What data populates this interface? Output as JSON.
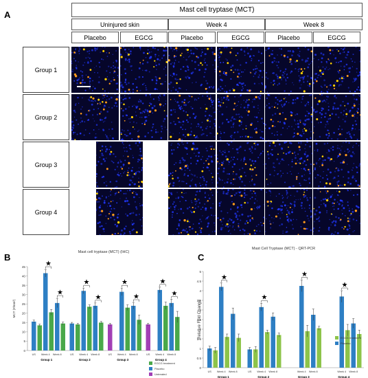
{
  "panels": {
    "a": "A",
    "b": "B",
    "c": "C"
  },
  "panelA": {
    "title": "Mast cell tryptase (MCT)",
    "timepoints": [
      "Uninjured skin",
      "Week 4",
      "Week 8"
    ],
    "treatments": [
      "Placebo",
      "EGCG",
      "Placebo",
      "EGCG",
      "Placebo",
      "EGCG"
    ],
    "groups": [
      "Group 1",
      "Group 2",
      "Group 3",
      "Group 4"
    ]
  },
  "panelB": {
    "title": "Mast cell tryptase (MCT) (IHC)",
    "ylabel": "MCT (#/mm²)",
    "legend": [
      "EGCG treatment",
      "Placebo",
      "Untreated"
    ],
    "colors": {
      "egcg": "#4aa84a",
      "placebo": "#2e7fc4",
      "untreated": "#a23fb5"
    }
  },
  "panelC": {
    "title": "Mast Cell Tryptase (MCT) - QRT-PCR",
    "ylabel": "Relative Fold Change",
    "legend": [
      "EGCG treatment",
      "Placebo"
    ],
    "colors": {
      "egcg": "#8dc44a",
      "placebo": "#2e7fc4"
    }
  },
  "chart_data": [
    {
      "type": "bar",
      "title": "Mast cell tryptase (MCT) (IHC)",
      "ylabel": "MCT (#/mm²)",
      "ylim": [
        0,
        45
      ],
      "yticks": [
        0,
        5,
        10,
        15,
        20,
        25,
        30,
        35,
        40,
        45
      ],
      "group_labels": [
        "Group 1",
        "Group 2",
        "Group 3",
        "Group 4"
      ],
      "tick_labels": [
        [
          "US",
          "Week 4",
          "Week 8"
        ],
        [
          "US",
          "Week 4",
          "Week 8"
        ],
        [
          "US",
          "Week 4",
          "Week 8"
        ],
        [
          "US",
          "Week 4",
          "Week 8"
        ]
      ],
      "series": [
        {
          "name": "EGCG treatment",
          "color": "#4aa84a"
        },
        {
          "name": "Placebo",
          "color": "#2e7fc4"
        },
        {
          "name": "Untreated",
          "color": "#a23fb5"
        }
      ],
      "bars": [
        {
          "group": 0,
          "slot": 0,
          "series": 1,
          "value": 15.5,
          "err": 0.8
        },
        {
          "group": 0,
          "slot": 1,
          "series": 0,
          "value": 13.5,
          "err": 0.6
        },
        {
          "group": 0,
          "slot": 2,
          "series": 1,
          "value": 41.5,
          "err": 2.0
        },
        {
          "group": 0,
          "slot": 3,
          "series": 0,
          "value": 20.5,
          "err": 1.5
        },
        {
          "group": 0,
          "slot": 4,
          "series": 1,
          "value": 25.5,
          "err": 2.5
        },
        {
          "group": 0,
          "slot": 5,
          "series": 0,
          "value": 14.5,
          "err": 0.8
        },
        {
          "group": 1,
          "slot": 0,
          "series": 1,
          "value": 14.5,
          "err": 0.6
        },
        {
          "group": 1,
          "slot": 1,
          "series": 0,
          "value": 14.0,
          "err": 0.6
        },
        {
          "group": 1,
          "slot": 2,
          "series": 1,
          "value": 32.0,
          "err": 1.5
        },
        {
          "group": 1,
          "slot": 3,
          "series": 0,
          "value": 23.5,
          "err": 1.0
        },
        {
          "group": 1,
          "slot": 4,
          "series": 1,
          "value": 24.0,
          "err": 1.5
        },
        {
          "group": 1,
          "slot": 5,
          "series": 0,
          "value": 15.0,
          "err": 0.6
        },
        {
          "group": 2,
          "slot": 0,
          "series": 2,
          "value": 14.0,
          "err": 0.6
        },
        {
          "group": 2,
          "slot": 2,
          "series": 1,
          "value": 31.5,
          "err": 2.0
        },
        {
          "group": 2,
          "slot": 3,
          "series": 0,
          "value": 23.0,
          "err": 1.5
        },
        {
          "group": 2,
          "slot": 4,
          "series": 1,
          "value": 24.0,
          "err": 1.8
        },
        {
          "group": 2,
          "slot": 5,
          "series": 0,
          "value": 16.5,
          "err": 2.5
        },
        {
          "group": 3,
          "slot": 0,
          "series": 2,
          "value": 14.0,
          "err": 0.6
        },
        {
          "group": 3,
          "slot": 2,
          "series": 1,
          "value": 32.5,
          "err": 1.5
        },
        {
          "group": 3,
          "slot": 3,
          "series": 0,
          "value": 24.0,
          "err": 2.0
        },
        {
          "group": 3,
          "slot": 4,
          "series": 1,
          "value": 25.5,
          "err": 2.0
        },
        {
          "group": 3,
          "slot": 5,
          "series": 0,
          "value": 18.0,
          "err": 3.0
        }
      ],
      "significance": [
        {
          "group": 0,
          "from": 2,
          "to": 3
        },
        {
          "group": 0,
          "from": 4,
          "to": 5
        },
        {
          "group": 1,
          "from": 2,
          "to": 3
        },
        {
          "group": 1,
          "from": 4,
          "to": 5
        },
        {
          "group": 2,
          "from": 2,
          "to": 3
        },
        {
          "group": 2,
          "from": 4,
          "to": 5
        },
        {
          "group": 3,
          "from": 2,
          "to": 3
        },
        {
          "group": 3,
          "from": 4,
          "to": 5
        }
      ],
      "legend_position": "bottom-right"
    },
    {
      "type": "bar",
      "title": "Mast Cell Tryptase (MCT) - QRT-PCR",
      "ylabel": "Relative Fold Change",
      "ylim": [
        0,
        5
      ],
      "yticks": [
        0,
        0.5,
        1,
        1.5,
        2,
        2.5,
        3,
        3.5,
        4,
        4.5,
        5
      ],
      "group_labels": [
        "Group 1",
        "Group 2",
        "Group 3",
        "Group 4"
      ],
      "tick_labels": [
        [
          "US",
          "Week 4",
          "Week 8"
        ],
        [
          "US",
          "Week 4",
          "Week 8"
        ],
        [
          "Week 4",
          "Week 8"
        ],
        [
          "Week 4",
          "Week 8"
        ]
      ],
      "series": [
        {
          "name": "EGCG treatment",
          "color": "#8dc44a"
        },
        {
          "name": "Placebo",
          "color": "#2e7fc4"
        }
      ],
      "bars": [
        {
          "group": 0,
          "slot": 0,
          "series": 1,
          "value": 1.0,
          "err": 0.12
        },
        {
          "group": 0,
          "slot": 1,
          "series": 0,
          "value": 0.9,
          "err": 0.15
        },
        {
          "group": 0,
          "slot": 2,
          "series": 1,
          "value": 4.2,
          "err": 0.2
        },
        {
          "group": 0,
          "slot": 3,
          "series": 0,
          "value": 1.6,
          "err": 0.15
        },
        {
          "group": 0,
          "slot": 4,
          "series": 1,
          "value": 2.8,
          "err": 0.3
        },
        {
          "group": 0,
          "slot": 5,
          "series": 0,
          "value": 1.55,
          "err": 0.2
        },
        {
          "group": 1,
          "slot": 0,
          "series": 1,
          "value": 0.95,
          "err": 0.1
        },
        {
          "group": 1,
          "slot": 1,
          "series": 0,
          "value": 0.95,
          "err": 0.15
        },
        {
          "group": 1,
          "slot": 2,
          "series": 1,
          "value": 3.15,
          "err": 0.2
        },
        {
          "group": 1,
          "slot": 3,
          "series": 0,
          "value": 1.85,
          "err": 0.1
        },
        {
          "group": 1,
          "slot": 4,
          "series": 1,
          "value": 2.65,
          "err": 0.2
        },
        {
          "group": 1,
          "slot": 5,
          "series": 0,
          "value": 1.7,
          "err": 0.1
        },
        {
          "group": 2,
          "slot": 2,
          "series": 1,
          "value": 4.25,
          "err": 0.3
        },
        {
          "group": 2,
          "slot": 3,
          "series": 0,
          "value": 1.9,
          "err": 0.3
        },
        {
          "group": 2,
          "slot": 4,
          "series": 1,
          "value": 2.75,
          "err": 0.3
        },
        {
          "group": 2,
          "slot": 5,
          "series": 0,
          "value": 2.05,
          "err": 0.1
        },
        {
          "group": 3,
          "slot": 2,
          "series": 1,
          "value": 3.7,
          "err": 0.3
        },
        {
          "group": 3,
          "slot": 3,
          "series": 0,
          "value": 1.95,
          "err": 0.3
        },
        {
          "group": 3,
          "slot": 4,
          "series": 1,
          "value": 2.3,
          "err": 0.25
        },
        {
          "group": 3,
          "slot": 5,
          "series": 0,
          "value": 1.75,
          "err": 0.2
        }
      ],
      "significance": [
        {
          "group": 0,
          "from": 2,
          "to": 3
        },
        {
          "group": 1,
          "from": 2,
          "to": 3
        },
        {
          "group": 2,
          "from": 2,
          "to": 3
        },
        {
          "group": 3,
          "from": 2,
          "to": 3
        }
      ],
      "legend_position": "bottom-right"
    }
  ]
}
